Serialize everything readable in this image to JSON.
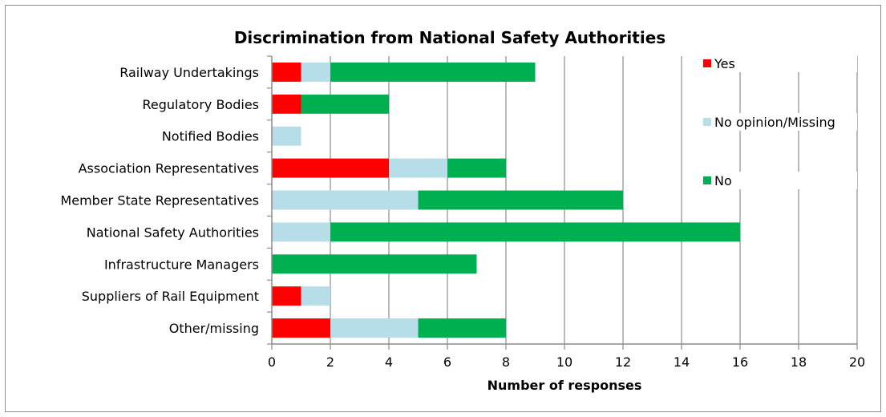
{
  "chart_data": {
    "type": "bar",
    "orientation": "horizontal",
    "stacked": true,
    "title": "Discrimination from National Safety Authorities",
    "xlabel": "Number of responses",
    "ylabel": "",
    "xlim": [
      0,
      20
    ],
    "xticks": [
      0,
      2,
      4,
      6,
      8,
      10,
      12,
      14,
      16,
      18,
      20
    ],
    "grid": "vertical",
    "legend_position": "right",
    "categories": [
      "Railway Undertakings",
      "Regulatory Bodies",
      "Notified Bodies",
      "Association Representatives",
      "Member State Representatives",
      "National Safety Authorities",
      "Infrastructure Managers",
      "Suppliers of Rail Equipment",
      "Other/missing"
    ],
    "series": [
      {
        "name": "Yes",
        "color": "#ff0000",
        "values": [
          1,
          1,
          0,
          4,
          0,
          0,
          0,
          1,
          2
        ]
      },
      {
        "name": "No opinion/Missing",
        "color": "#b7dde8",
        "values": [
          1,
          0,
          1,
          2,
          5,
          2,
          0,
          1,
          3
        ]
      },
      {
        "name": "No",
        "color": "#00b050",
        "values": [
          7,
          3,
          0,
          2,
          7,
          14,
          7,
          0,
          3
        ]
      }
    ]
  }
}
